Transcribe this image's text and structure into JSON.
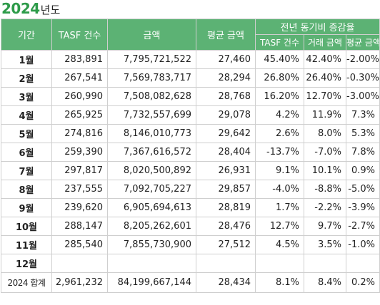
{
  "title": {
    "year": "2024",
    "suffix": "년도"
  },
  "headers": {
    "period": "기간",
    "tasf_count": "TASF 건수",
    "amount": "금액",
    "avg_amount": "평균 금액",
    "yoy_group": "전년 동기비 증감율",
    "yoy_tasf": "TASF 건수",
    "yoy_trade": "거래 금액",
    "yoy_avg": "평균 금액"
  },
  "rows": [
    {
      "month": "1월",
      "count": "283,891",
      "amount": "7,795,721,522",
      "avg": "27,460",
      "yoy_count": "45.40%",
      "yoy_trade": "42.40%",
      "yoy_avg": "-2.00%"
    },
    {
      "month": "2월",
      "count": "267,541",
      "amount": "7,569,783,717",
      "avg": "28,294",
      "yoy_count": "26.80%",
      "yoy_trade": "26.40%",
      "yoy_avg": "-0.30%"
    },
    {
      "month": "3월",
      "count": "260,990",
      "amount": "7,508,082,628",
      "avg": "28,768",
      "yoy_count": "16.20%",
      "yoy_trade": "12.70%",
      "yoy_avg": "-3.00%"
    },
    {
      "month": "4월",
      "count": "265,925",
      "amount": "7,732,557,699",
      "avg": "29,078",
      "yoy_count": "4.2%",
      "yoy_trade": "11.9%",
      "yoy_avg": "7.3%"
    },
    {
      "month": "5월",
      "count": "274,816",
      "amount": "8,146,010,773",
      "avg": "29,642",
      "yoy_count": "2.6%",
      "yoy_trade": "8.0%",
      "yoy_avg": "5.3%"
    },
    {
      "month": "6월",
      "count": "259,390",
      "amount": "7,367,616,572",
      "avg": "28,404",
      "yoy_count": "-13.7%",
      "yoy_trade": "-7.0%",
      "yoy_avg": "7.8%"
    },
    {
      "month": "7월",
      "count": "297,817",
      "amount": "8,020,500,892",
      "avg": "26,931",
      "yoy_count": "9.1%",
      "yoy_trade": "10.1%",
      "yoy_avg": "0.9%"
    },
    {
      "month": "8월",
      "count": "237,555",
      "amount": "7,092,705,227",
      "avg": "29,857",
      "yoy_count": "-4.0%",
      "yoy_trade": "-8.8%",
      "yoy_avg": "-5.0%"
    },
    {
      "month": "9월",
      "count": "239,620",
      "amount": "6,905,694,613",
      "avg": "28,819",
      "yoy_count": "1.7%",
      "yoy_trade": "-2.2%",
      "yoy_avg": "-3.9%"
    },
    {
      "month": "10월",
      "count": "288,147",
      "amount": "8,205,262,601",
      "avg": "28,476",
      "yoy_count": "12.7%",
      "yoy_trade": "9.7%",
      "yoy_avg": "-2.7%"
    },
    {
      "month": "11월",
      "count": "285,540",
      "amount": "7,855,730,900",
      "avg": "27,512",
      "yoy_count": "4.5%",
      "yoy_trade": "3.5%",
      "yoy_avg": "-1.0%"
    },
    {
      "month": "12월",
      "count": "",
      "amount": "",
      "avg": "",
      "yoy_count": "",
      "yoy_trade": "",
      "yoy_avg": ""
    }
  ],
  "total": {
    "month": "2024 합계",
    "count": "2,961,232",
    "amount": "84,199,667,144",
    "avg": "28,434",
    "yoy_count": "8.1%",
    "yoy_trade": "8.4%",
    "yoy_avg": "0.2%"
  }
}
